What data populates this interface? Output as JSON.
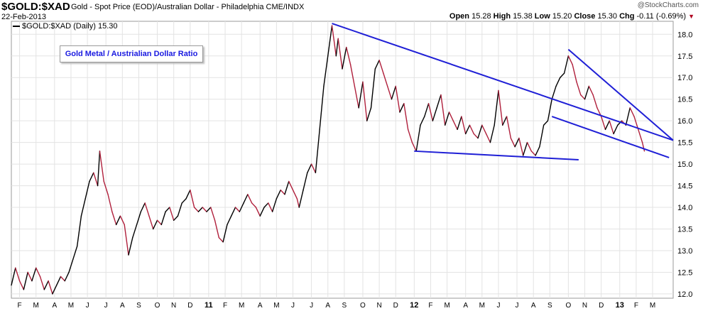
{
  "header": {
    "symbol": "$GOLD:$XAD",
    "description": "Gold - Spot Price (EOD)/Australian Dollar - Philadelphia",
    "exchange": "CME/INDX",
    "date": "22-Feb-2013",
    "open_label": "Open",
    "open": "15.28",
    "high_label": "High",
    "high": "15.38",
    "low_label": "Low",
    "low": "15.20",
    "close_label": "Close",
    "close": "15.30",
    "chg_label": "Chg",
    "chg": "-0.11 (-0.69%)",
    "credit": "@StockCharts.com"
  },
  "legend": {
    "text": "$GOLD:$XAD (Daily) 15.30"
  },
  "annotation": {
    "text": "Gold Metal / Austrialian Dollar Ratio"
  },
  "colors": {
    "up": "#000000",
    "down": "#b0203c",
    "trend": "#1f1fd6",
    "grid": "#e3e3e3",
    "annotation": "#1a1ae0"
  },
  "chart_data": {
    "type": "line",
    "title": "",
    "ylim": [
      11.9,
      18.3
    ],
    "y_ticks": [
      12.0,
      12.5,
      13.0,
      13.5,
      14.0,
      14.5,
      15.0,
      15.5,
      16.0,
      16.5,
      17.0,
      17.5,
      18.0
    ],
    "x_ticks": [
      {
        "label": "F",
        "x": 2010.08
      },
      {
        "label": "M",
        "x": 2010.16
      },
      {
        "label": "A",
        "x": 2010.25
      },
      {
        "label": "M",
        "x": 2010.33
      },
      {
        "label": "J",
        "x": 2010.41
      },
      {
        "label": "J",
        "x": 2010.5
      },
      {
        "label": "A",
        "x": 2010.58
      },
      {
        "label": "S",
        "x": 2010.66
      },
      {
        "label": "O",
        "x": 2010.75
      },
      {
        "label": "N",
        "x": 2010.83
      },
      {
        "label": "D",
        "x": 2010.91
      },
      {
        "label": "11",
        "x": 2011.0,
        "year": true
      },
      {
        "label": "F",
        "x": 2011.08
      },
      {
        "label": "M",
        "x": 2011.16
      },
      {
        "label": "A",
        "x": 2011.25
      },
      {
        "label": "M",
        "x": 2011.33
      },
      {
        "label": "J",
        "x": 2011.41
      },
      {
        "label": "J",
        "x": 2011.5
      },
      {
        "label": "A",
        "x": 2011.58
      },
      {
        "label": "S",
        "x": 2011.66
      },
      {
        "label": "O",
        "x": 2011.75
      },
      {
        "label": "N",
        "x": 2011.83
      },
      {
        "label": "D",
        "x": 2011.91
      },
      {
        "label": "12",
        "x": 2012.0,
        "year": true
      },
      {
        "label": "F",
        "x": 2012.08
      },
      {
        "label": "M",
        "x": 2012.16
      },
      {
        "label": "A",
        "x": 2012.25
      },
      {
        "label": "M",
        "x": 2012.33
      },
      {
        "label": "J",
        "x": 2012.41
      },
      {
        "label": "J",
        "x": 2012.5
      },
      {
        "label": "A",
        "x": 2012.58
      },
      {
        "label": "S",
        "x": 2012.66
      },
      {
        "label": "O",
        "x": 2012.75
      },
      {
        "label": "N",
        "x": 2012.83
      },
      {
        "label": "D",
        "x": 2012.91
      },
      {
        "label": "13",
        "x": 2013.0,
        "year": true
      },
      {
        "label": "F",
        "x": 2013.08
      },
      {
        "label": "M",
        "x": 2013.16
      }
    ],
    "xlim": [
      2010.04,
      2013.26
    ],
    "series": [
      {
        "points": [
          [
            2010.04,
            12.2
          ],
          [
            2010.06,
            12.6
          ],
          [
            2010.08,
            12.3
          ],
          [
            2010.1,
            12.1
          ],
          [
            2010.12,
            12.5
          ],
          [
            2010.14,
            12.3
          ],
          [
            2010.16,
            12.6
          ],
          [
            2010.18,
            12.4
          ],
          [
            2010.2,
            12.1
          ],
          [
            2010.22,
            12.3
          ],
          [
            2010.24,
            12.0
          ],
          [
            2010.26,
            12.2
          ],
          [
            2010.28,
            12.4
          ],
          [
            2010.3,
            12.3
          ],
          [
            2010.32,
            12.5
          ],
          [
            2010.34,
            12.8
          ],
          [
            2010.36,
            13.1
          ],
          [
            2010.38,
            13.8
          ],
          [
            2010.4,
            14.2
          ],
          [
            2010.42,
            14.6
          ],
          [
            2010.44,
            14.8
          ],
          [
            2010.46,
            14.5
          ],
          [
            2010.47,
            15.3
          ],
          [
            2010.49,
            14.6
          ],
          [
            2010.51,
            14.3
          ],
          [
            2010.53,
            13.9
          ],
          [
            2010.55,
            13.6
          ],
          [
            2010.57,
            13.8
          ],
          [
            2010.59,
            13.6
          ],
          [
            2010.61,
            12.9
          ],
          [
            2010.63,
            13.3
          ],
          [
            2010.65,
            13.6
          ],
          [
            2010.67,
            13.9
          ],
          [
            2010.69,
            14.1
          ],
          [
            2010.71,
            13.8
          ],
          [
            2010.73,
            13.5
          ],
          [
            2010.75,
            13.7
          ],
          [
            2010.77,
            13.6
          ],
          [
            2010.79,
            13.9
          ],
          [
            2010.81,
            14.0
          ],
          [
            2010.83,
            13.7
          ],
          [
            2010.85,
            13.8
          ],
          [
            2010.87,
            14.1
          ],
          [
            2010.89,
            14.2
          ],
          [
            2010.91,
            14.4
          ],
          [
            2010.93,
            14.0
          ],
          [
            2010.95,
            13.9
          ],
          [
            2010.97,
            14.0
          ],
          [
            2010.99,
            13.9
          ],
          [
            2011.01,
            14.0
          ],
          [
            2011.03,
            13.7
          ],
          [
            2011.05,
            13.3
          ],
          [
            2011.07,
            13.2
          ],
          [
            2011.09,
            13.6
          ],
          [
            2011.11,
            13.8
          ],
          [
            2011.13,
            14.0
          ],
          [
            2011.15,
            13.9
          ],
          [
            2011.17,
            14.1
          ],
          [
            2011.19,
            14.3
          ],
          [
            2011.21,
            14.1
          ],
          [
            2011.23,
            14.0
          ],
          [
            2011.25,
            13.8
          ],
          [
            2011.27,
            14.0
          ],
          [
            2011.29,
            14.1
          ],
          [
            2011.31,
            13.9
          ],
          [
            2011.33,
            14.2
          ],
          [
            2011.35,
            14.4
          ],
          [
            2011.37,
            14.3
          ],
          [
            2011.39,
            14.6
          ],
          [
            2011.41,
            14.4
          ],
          [
            2011.43,
            14.2
          ],
          [
            2011.44,
            14.0
          ],
          [
            2011.46,
            14.4
          ],
          [
            2011.48,
            14.8
          ],
          [
            2011.5,
            15.0
          ],
          [
            2011.52,
            14.8
          ],
          [
            2011.54,
            15.8
          ],
          [
            2011.56,
            16.8
          ],
          [
            2011.58,
            17.5
          ],
          [
            2011.6,
            18.2
          ],
          [
            2011.62,
            17.5
          ],
          [
            2011.63,
            17.9
          ],
          [
            2011.65,
            17.2
          ],
          [
            2011.67,
            17.7
          ],
          [
            2011.69,
            17.3
          ],
          [
            2011.71,
            16.8
          ],
          [
            2011.73,
            16.3
          ],
          [
            2011.75,
            16.9
          ],
          [
            2011.77,
            16.0
          ],
          [
            2011.79,
            16.3
          ],
          [
            2011.81,
            17.2
          ],
          [
            2011.83,
            17.4
          ],
          [
            2011.85,
            17.1
          ],
          [
            2011.87,
            16.8
          ],
          [
            2011.89,
            16.5
          ],
          [
            2011.91,
            16.8
          ],
          [
            2011.93,
            16.2
          ],
          [
            2011.95,
            16.4
          ],
          [
            2011.97,
            15.8
          ],
          [
            2011.99,
            15.5
          ],
          [
            2012.01,
            15.3
          ],
          [
            2012.03,
            15.9
          ],
          [
            2012.05,
            16.1
          ],
          [
            2012.07,
            16.4
          ],
          [
            2012.09,
            16.0
          ],
          [
            2012.11,
            16.3
          ],
          [
            2012.13,
            16.6
          ],
          [
            2012.15,
            15.9
          ],
          [
            2012.17,
            16.2
          ],
          [
            2012.19,
            16.0
          ],
          [
            2012.21,
            15.8
          ],
          [
            2012.23,
            16.1
          ],
          [
            2012.25,
            15.7
          ],
          [
            2012.27,
            15.9
          ],
          [
            2012.29,
            15.7
          ],
          [
            2012.31,
            15.6
          ],
          [
            2012.33,
            15.9
          ],
          [
            2012.35,
            15.7
          ],
          [
            2012.37,
            15.5
          ],
          [
            2012.39,
            15.9
          ],
          [
            2012.41,
            16.7
          ],
          [
            2012.43,
            15.9
          ],
          [
            2012.45,
            16.1
          ],
          [
            2012.47,
            15.6
          ],
          [
            2012.49,
            15.4
          ],
          [
            2012.51,
            15.6
          ],
          [
            2012.53,
            15.2
          ],
          [
            2012.55,
            15.5
          ],
          [
            2012.57,
            15.3
          ],
          [
            2012.59,
            15.2
          ],
          [
            2012.61,
            15.4
          ],
          [
            2012.63,
            15.9
          ],
          [
            2012.65,
            16.0
          ],
          [
            2012.67,
            16.5
          ],
          [
            2012.69,
            16.8
          ],
          [
            2012.71,
            17.0
          ],
          [
            2012.73,
            17.1
          ],
          [
            2012.75,
            17.5
          ],
          [
            2012.77,
            17.3
          ],
          [
            2012.79,
            16.9
          ],
          [
            2012.81,
            16.6
          ],
          [
            2012.83,
            16.5
          ],
          [
            2012.85,
            16.8
          ],
          [
            2012.87,
            16.6
          ],
          [
            2012.89,
            16.3
          ],
          [
            2012.91,
            16.1
          ],
          [
            2012.93,
            15.8
          ],
          [
            2012.95,
            16.0
          ],
          [
            2012.97,
            15.7
          ],
          [
            2012.99,
            15.9
          ],
          [
            2013.01,
            16.0
          ],
          [
            2013.03,
            15.9
          ],
          [
            2013.05,
            16.3
          ],
          [
            2013.07,
            16.1
          ],
          [
            2013.09,
            15.8
          ],
          [
            2013.11,
            15.5
          ],
          [
            2013.12,
            15.3
          ]
        ]
      }
    ],
    "trendlines": [
      {
        "from": [
          2011.6,
          18.25
        ],
        "to": [
          2013.26,
          15.55
        ]
      },
      {
        "from": [
          2012.75,
          17.65
        ],
        "to": [
          2013.26,
          15.55
        ]
      },
      {
        "from": [
          2012.67,
          16.1
        ],
        "to": [
          2013.24,
          15.15
        ]
      },
      {
        "from": [
          2012.0,
          15.3
        ],
        "to": [
          2012.8,
          15.1
        ]
      }
    ]
  }
}
